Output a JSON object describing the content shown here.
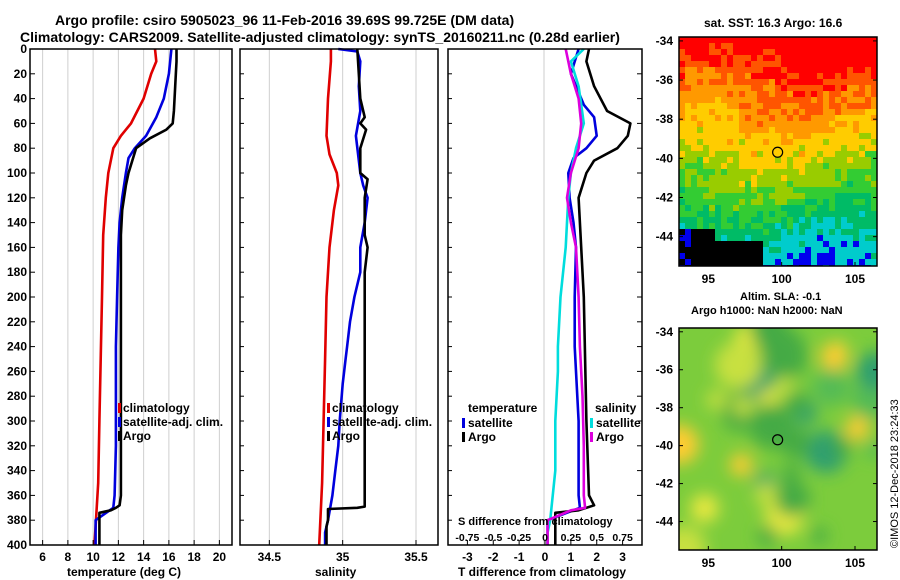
{
  "header": {
    "title_line1": "Argo profile: csiro 5905023_96 11-Feb-2016 39.69S 99.725E (DM data)",
    "title_line2": "Climatology: CARS2009. Satellite-adjusted climatology: synTS_20160211.nc (0.28d earlier)"
  },
  "watermark": "©IMOS 12-Dec-2018 23:24:33",
  "colors": {
    "climatology": "#e00000",
    "satellite": "#0000dd",
    "argo": "#000000",
    "cyan": "#00dddd",
    "magenta": "#dd00dd"
  },
  "depth_ticks": [
    0,
    20,
    40,
    60,
    80,
    100,
    120,
    140,
    160,
    180,
    200,
    220,
    240,
    260,
    280,
    300,
    320,
    340,
    360,
    380,
    400
  ],
  "chart_data": [
    {
      "type": "line",
      "id": "temperature",
      "xlabel": "temperature (deg C)",
      "ylabel": "depth",
      "xlim": [
        5,
        21
      ],
      "ylim": [
        400,
        0
      ],
      "x_ticks": [
        6,
        8,
        10,
        12,
        14,
        16,
        18,
        20
      ],
      "legend": [
        "climatology",
        "satellite-adj. clim.",
        "Argo"
      ],
      "legend_position": "lower-right",
      "series": [
        {
          "name": "climatology",
          "color": "#e00000",
          "points": [
            [
              14.9,
              0
            ],
            [
              15.0,
              10
            ],
            [
              14.6,
              20
            ],
            [
              14.0,
              40
            ],
            [
              13.0,
              60
            ],
            [
              12.2,
              70
            ],
            [
              11.6,
              80
            ],
            [
              11.2,
              100
            ],
            [
              11.0,
              120
            ],
            [
              10.8,
              150
            ],
            [
              10.7,
              200
            ],
            [
              10.6,
              250
            ],
            [
              10.5,
              300
            ],
            [
              10.4,
              350
            ],
            [
              10.2,
              385
            ],
            [
              10.1,
              400
            ]
          ]
        },
        {
          "name": "satellite-adj. clim.",
          "color": "#0000dd",
          "points": [
            [
              16.2,
              0
            ],
            [
              16.0,
              20
            ],
            [
              15.6,
              40
            ],
            [
              15.0,
              55
            ],
            [
              14.2,
              70
            ],
            [
              13.3,
              80
            ],
            [
              12.8,
              88
            ],
            [
              12.6,
              100
            ],
            [
              12.3,
              120
            ],
            [
              12.1,
              140
            ],
            [
              12.0,
              160
            ],
            [
              11.9,
              200
            ],
            [
              11.8,
              240
            ],
            [
              11.8,
              280
            ],
            [
              11.8,
              320
            ],
            [
              11.7,
              360
            ],
            [
              11.6,
              370
            ],
            [
              10.2,
              380
            ],
            [
              10.2,
              400
            ]
          ]
        },
        {
          "name": "Argo",
          "color": "#000000",
          "points": [
            [
              16.6,
              0
            ],
            [
              16.6,
              10
            ],
            [
              16.5,
              30
            ],
            [
              16.4,
              50
            ],
            [
              16.3,
              60
            ],
            [
              15.8,
              65
            ],
            [
              14.5,
              72
            ],
            [
              13.4,
              80
            ],
            [
              13.1,
              90
            ],
            [
              12.8,
              100
            ],
            [
              12.6,
              110
            ],
            [
              12.3,
              130
            ],
            [
              12.2,
              150
            ],
            [
              12.2,
              200
            ],
            [
              12.2,
              300
            ],
            [
              12.2,
              360
            ],
            [
              12.1,
              368
            ],
            [
              11.8,
              370
            ],
            [
              11.4,
              372
            ],
            [
              10.5,
              374
            ],
            [
              10.5,
              400
            ]
          ]
        }
      ]
    },
    {
      "type": "line",
      "id": "salinity",
      "xlabel": "salinity",
      "ylabel": "depth",
      "xlim": [
        34.3,
        35.65
      ],
      "ylim": [
        400,
        0
      ],
      "x_ticks": [
        34.5,
        35,
        35.5
      ],
      "legend": [
        "climatology",
        "satellite-adj. clim.",
        "Argo"
      ],
      "legend_position": "lower-right",
      "series": [
        {
          "name": "climatology",
          "color": "#e00000",
          "points": [
            [
              34.92,
              0
            ],
            [
              34.92,
              10
            ],
            [
              34.9,
              40
            ],
            [
              34.89,
              70
            ],
            [
              34.91,
              85
            ],
            [
              34.96,
              100
            ],
            [
              34.97,
              110
            ],
            [
              34.94,
              130
            ],
            [
              34.91,
              160
            ],
            [
              34.89,
              200
            ],
            [
              34.88,
              250
            ],
            [
              34.87,
              300
            ],
            [
              34.86,
              350
            ],
            [
              34.84,
              400
            ]
          ]
        },
        {
          "name": "satellite-adj. clim.",
          "color": "#0000dd",
          "points": [
            [
              34.97,
              0
            ],
            [
              35.1,
              2
            ],
            [
              35.12,
              10
            ],
            [
              35.11,
              30
            ],
            [
              35.12,
              50
            ],
            [
              35.09,
              70
            ],
            [
              35.12,
              100
            ],
            [
              35.14,
              110
            ],
            [
              35.17,
              120
            ],
            [
              35.15,
              140
            ],
            [
              35.12,
              160
            ],
            [
              35.12,
              180
            ],
            [
              35.08,
              200
            ],
            [
              35.05,
              220
            ],
            [
              35.03,
              240
            ],
            [
              35.02,
              250
            ],
            [
              35.0,
              270
            ],
            [
              34.98,
              300
            ],
            [
              34.97,
              320
            ],
            [
              34.95,
              340
            ],
            [
              34.93,
              360
            ],
            [
              34.9,
              380
            ],
            [
              34.88,
              390
            ],
            [
              34.88,
              400
            ]
          ]
        },
        {
          "name": "Argo",
          "color": "#000000",
          "points": [
            [
              35.1,
              0
            ],
            [
              35.11,
              20
            ],
            [
              35.12,
              40
            ],
            [
              35.15,
              55
            ],
            [
              35.12,
              60
            ],
            [
              35.16,
              65
            ],
            [
              35.12,
              80
            ],
            [
              35.12,
              100
            ],
            [
              35.17,
              105
            ],
            [
              35.15,
              120
            ],
            [
              35.15,
              140
            ],
            [
              35.15,
              150
            ],
            [
              35.17,
              160
            ],
            [
              35.15,
              180
            ],
            [
              35.15,
              200
            ],
            [
              35.15,
              300
            ],
            [
              35.15,
              369
            ],
            [
              35.1,
              370
            ],
            [
              34.9,
              371
            ],
            [
              34.9,
              380
            ],
            [
              34.89,
              385
            ],
            [
              34.89,
              400
            ]
          ]
        }
      ]
    },
    {
      "type": "line",
      "id": "difference",
      "xlabel": "T difference from climatology",
      "top_label": "S difference from climatology",
      "top_ticks": [
        "-0.75",
        "-0.5",
        "-0.25",
        "0",
        "0.25",
        "0.5",
        "0.75"
      ],
      "ylabel": "depth",
      "xlim": [
        -3.75,
        3.75
      ],
      "ylim": [
        400,
        0
      ],
      "x_ticks": [
        -3,
        -2,
        -1,
        0,
        1,
        2,
        3
      ],
      "legend_temperature": {
        "title": "temperature",
        "items": [
          "satellite",
          "Argo"
        ]
      },
      "legend_salinity": {
        "title": "salinity",
        "items": [
          "satellite",
          "Argo"
        ]
      },
      "legend_position": "lower",
      "series": [
        {
          "name": "temperature satellite",
          "color": "#0000dd",
          "points": [
            [
              1.3,
              0
            ],
            [
              1.0,
              20
            ],
            [
              1.5,
              45
            ],
            [
              1.9,
              55
            ],
            [
              2.0,
              70
            ],
            [
              1.6,
              80
            ],
            [
              1.1,
              88
            ],
            [
              0.9,
              100
            ],
            [
              0.95,
              120
            ],
            [
              1.1,
              140
            ],
            [
              1.2,
              160
            ],
            [
              1.15,
              200
            ],
            [
              1.15,
              240
            ],
            [
              1.3,
              300
            ],
            [
              1.3,
              360
            ],
            [
              1.35,
              370
            ],
            [
              0.1,
              380
            ],
            [
              0.1,
              400
            ]
          ]
        },
        {
          "name": "temperature Argo",
          "color": "#000000",
          "points": [
            [
              1.7,
              0
            ],
            [
              1.6,
              10
            ],
            [
              1.9,
              30
            ],
            [
              2.4,
              50
            ],
            [
              3.3,
              60
            ],
            [
              3.2,
              70
            ],
            [
              2.8,
              80
            ],
            [
              1.9,
              90
            ],
            [
              1.6,
              100
            ],
            [
              1.3,
              120
            ],
            [
              1.4,
              160
            ],
            [
              1.5,
              200
            ],
            [
              1.6,
              300
            ],
            [
              1.7,
              360
            ],
            [
              1.9,
              368
            ],
            [
              1.3,
              372
            ],
            [
              0.4,
              374
            ],
            [
              0.4,
              400
            ]
          ]
        },
        {
          "name": "salinity satellite",
          "color": "#00dddd",
          "points": [
            [
              1.5,
              0
            ],
            [
              1.0,
              10
            ],
            [
              1.3,
              30
            ],
            [
              1.5,
              60
            ],
            [
              1.2,
              80
            ],
            [
              1.0,
              100
            ],
            [
              0.9,
              120
            ],
            [
              0.8,
              160
            ],
            [
              0.6,
              200
            ],
            [
              0.5,
              240
            ],
            [
              0.5,
              260
            ],
            [
              0.4,
              300
            ],
            [
              0.4,
              340
            ],
            [
              0.2,
              380
            ],
            [
              0.1,
              390
            ],
            [
              0.1,
              400
            ]
          ]
        },
        {
          "name": "salinity Argo",
          "color": "#dd00dd",
          "points": [
            [
              0.8,
              0
            ],
            [
              1.0,
              20
            ],
            [
              1.3,
              40
            ],
            [
              1.4,
              60
            ],
            [
              1.3,
              80
            ],
            [
              1.0,
              100
            ],
            [
              0.85,
              120
            ],
            [
              1.0,
              140
            ],
            [
              1.2,
              160
            ],
            [
              1.3,
              200
            ],
            [
              1.35,
              240
            ],
            [
              1.45,
              280
            ],
            [
              1.5,
              320
            ],
            [
              1.5,
              360
            ],
            [
              1.55,
              370
            ],
            [
              1.0,
              372
            ],
            [
              0.1,
              380
            ],
            [
              0.1,
              400
            ]
          ]
        }
      ]
    },
    {
      "type": "heatmap",
      "id": "sst_map",
      "title": "sat. SST: 16.3 Argo: 16.6",
      "x_ticks": [
        95,
        100,
        105
      ],
      "y_ticks": [
        -34,
        -36,
        -38,
        -40,
        -42,
        -44
      ],
      "xlim": [
        93,
        106.5
      ],
      "ylim": [
        -45.5,
        -33.8
      ],
      "argo_marker": [
        99.725,
        -39.69
      ]
    },
    {
      "type": "heatmap",
      "id": "sla_map",
      "title_line1": "Altim. SLA: -0.1",
      "title_line2": "Argo h1000: NaN h2000: NaN",
      "x_ticks": [
        95,
        100,
        105
      ],
      "y_ticks": [
        -34,
        -36,
        -38,
        -40,
        -42,
        -44
      ],
      "xlim": [
        93,
        106.5
      ],
      "ylim": [
        -45.5,
        -33.8
      ],
      "argo_marker": [
        99.725,
        -39.69
      ]
    }
  ]
}
